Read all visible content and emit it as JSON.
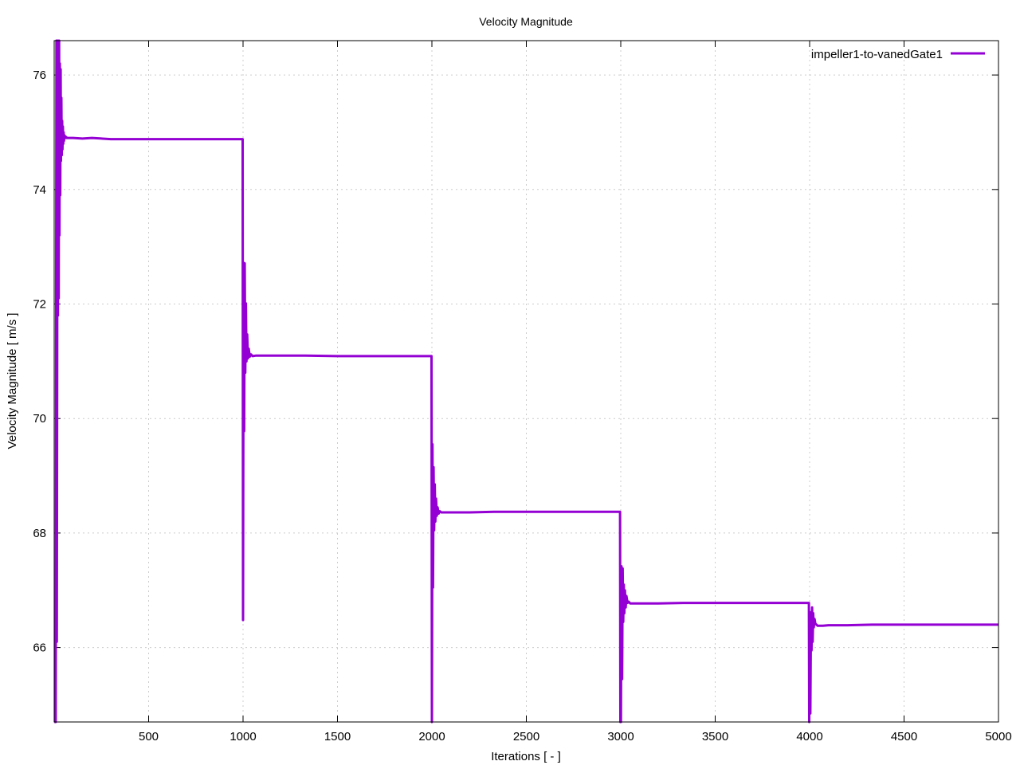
{
  "chart_data": {
    "type": "line",
    "title": "Velocity Magnitude",
    "xlabel": "Iterations [ - ]",
    "ylabel": "Velocity Magnitude [ m/s ]",
    "xlim": [
      0,
      5000
    ],
    "ylim": [
      64.7,
      76.6
    ],
    "xticks": [
      500,
      1000,
      1500,
      2000,
      2500,
      3000,
      3500,
      4000,
      4500,
      5000
    ],
    "yticks": [
      66,
      68,
      70,
      72,
      74,
      76
    ],
    "grid": true,
    "legend_position": "top-right",
    "series": [
      {
        "name": "impeller1-to-vanedGate1",
        "color": "#9400d3",
        "x": [
          1,
          8,
          12,
          14,
          18,
          20,
          22,
          24,
          26,
          28,
          30,
          32,
          34,
          36,
          38,
          40,
          42,
          44,
          46,
          48,
          50,
          52,
          54,
          56,
          58,
          60,
          62,
          64,
          66,
          68,
          72,
          80,
          100,
          150,
          200,
          300,
          500,
          800,
          998,
          1000,
          1003,
          1006,
          1009,
          1012,
          1015,
          1018,
          1022,
          1026,
          1030,
          1036,
          1042,
          1050,
          1070,
          1100,
          1200,
          1330,
          1500,
          1998,
          2000,
          2003,
          2006,
          2009,
          2012,
          2015,
          2018,
          2022,
          2026,
          2030,
          2036,
          2042,
          2050,
          2070,
          2100,
          2200,
          2330,
          2500,
          2996,
          2998,
          3001,
          3004,
          3007,
          3010,
          3013,
          3016,
          3019,
          3022,
          3026,
          3030,
          3036,
          3042,
          3050,
          3070,
          3100,
          3200,
          3330,
          3500,
          3996,
          3998,
          4001,
          4004,
          4007,
          4010,
          4013,
          4016,
          4019,
          4022,
          4026,
          4030,
          4036,
          4042,
          4050,
          4070,
          4100,
          4200,
          4330,
          4500,
          5000
        ],
        "y": [
          64.7,
          64.7,
          76.6,
          66.1,
          76.6,
          71.8,
          76.6,
          72.1,
          76.6,
          73.2,
          76.2,
          73.9,
          76.1,
          74.5,
          75.6,
          74.6,
          75.2,
          74.7,
          75.1,
          74.8,
          75.0,
          74.85,
          74.95,
          74.9,
          74.93,
          74.9,
          74.92,
          74.9,
          74.91,
          74.9,
          74.9,
          74.9,
          74.9,
          74.89,
          74.9,
          74.88,
          74.88,
          74.88,
          74.88,
          66.48,
          72.72,
          69.78,
          72.71,
          70.8,
          72.01,
          71.0,
          71.47,
          71.05,
          71.22,
          71.08,
          71.12,
          71.09,
          71.1,
          71.1,
          71.1,
          71.1,
          71.09,
          71.09,
          64.7,
          69.55,
          67.05,
          69.15,
          68.05,
          68.85,
          68.2,
          68.6,
          68.3,
          68.45,
          68.34,
          68.38,
          68.36,
          68.36,
          68.36,
          68.36,
          68.37,
          68.37,
          68.37,
          64.7,
          64.7,
          67.42,
          65.45,
          67.38,
          66.45,
          67.1,
          66.6,
          67.0,
          66.7,
          66.9,
          66.78,
          66.8,
          66.77,
          66.77,
          66.77,
          66.77,
          66.78,
          66.78,
          66.78,
          64.7,
          66.62,
          64.85,
          66.55,
          65.95,
          66.7,
          66.1,
          66.6,
          66.35,
          66.5,
          66.42,
          66.4,
          66.38,
          66.38,
          66.38,
          66.39,
          66.39,
          66.4,
          66.4,
          66.4
        ]
      }
    ]
  }
}
